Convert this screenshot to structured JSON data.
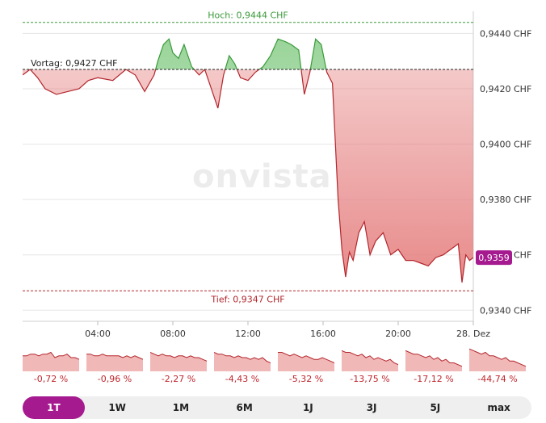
{
  "watermark": "onvista",
  "chart_data": {
    "type": "area",
    "y_ticks": [
      "0,9440 CHF",
      "0,9420 CHF",
      "0,9400 CHF",
      "0,9380 CHF",
      "0,9360 CHF",
      "0,9340 CHF"
    ],
    "y_tick_values": [
      0.944,
      0.942,
      0.94,
      0.938,
      0.936,
      0.934
    ],
    "ylim": [
      0.9336,
      0.9448
    ],
    "x_ticks": [
      "04:00",
      "08:00",
      "12:00",
      "16:00",
      "20:00",
      "28. Dez"
    ],
    "x_tick_hours": [
      4,
      8,
      12,
      16,
      20,
      24
    ],
    "xlim": [
      0,
      24
    ],
    "high": {
      "label": "Hoch: 0,9444 CHF",
      "value": 0.9444
    },
    "previous_close": {
      "label": "Vortag: 0,9427 CHF",
      "value": 0.9427
    },
    "low": {
      "label": "Tief: 0,9347 CHF",
      "value": 0.9347
    },
    "last": {
      "label": "0,9359",
      "value": 0.9359
    },
    "x": [
      0.0,
      0.4,
      0.8,
      1.2,
      1.8,
      2.4,
      3.0,
      3.5,
      4.0,
      4.8,
      5.5,
      6.0,
      6.5,
      7.0,
      7.2,
      7.5,
      7.8,
      8.0,
      8.3,
      8.6,
      9.0,
      9.4,
      9.7,
      10.0,
      10.4,
      10.7,
      11.0,
      11.3,
      11.6,
      12.0,
      12.4,
      12.8,
      13.2,
      13.6,
      14.0,
      14.3,
      14.7,
      15.0,
      15.3,
      15.6,
      15.9,
      16.2,
      16.5,
      16.8,
      17.0,
      17.2,
      17.4,
      17.6,
      17.9,
      18.2,
      18.5,
      18.8,
      19.2,
      19.6,
      20.0,
      20.4,
      20.8,
      21.2,
      21.6,
      22.0,
      22.4,
      22.8,
      23.2,
      23.4,
      23.6,
      23.8,
      24.0
    ],
    "values": [
      0.9425,
      0.9427,
      0.9424,
      0.942,
      0.9418,
      0.9419,
      0.942,
      0.9423,
      0.9424,
      0.9423,
      0.9427,
      0.9425,
      0.9419,
      0.9425,
      0.943,
      0.9436,
      0.9438,
      0.9433,
      0.9431,
      0.9436,
      0.9428,
      0.9425,
      0.9427,
      0.9421,
      0.9413,
      0.9425,
      0.9432,
      0.9429,
      0.9424,
      0.9423,
      0.9426,
      0.9428,
      0.9432,
      0.9438,
      0.9437,
      0.9436,
      0.9434,
      0.9418,
      0.9426,
      0.9438,
      0.9436,
      0.9426,
      0.9422,
      0.938,
      0.9362,
      0.9352,
      0.9361,
      0.9358,
      0.9368,
      0.9372,
      0.936,
      0.9365,
      0.9368,
      0.936,
      0.9362,
      0.9358,
      0.9358,
      0.9357,
      0.9356,
      0.9359,
      0.936,
      0.9362,
      0.9364,
      0.935,
      0.936,
      0.9358,
      0.9359
    ]
  },
  "performance": [
    {
      "label": "-0,72 %",
      "values": [
        5,
        5,
        4,
        4,
        5,
        4,
        4,
        3,
        6,
        5,
        5,
        4,
        6,
        6,
        7
      ]
    },
    {
      "label": "-0,96 %",
      "values": [
        4,
        4,
        5,
        5,
        4,
        5,
        5,
        5,
        5,
        6,
        5,
        6,
        5,
        6,
        7
      ]
    },
    {
      "label": "-2,27 %",
      "values": [
        3,
        4,
        5,
        4,
        5,
        5,
        6,
        5,
        5,
        6,
        5,
        6,
        6,
        7,
        8
      ]
    },
    {
      "label": "-4,43 %",
      "values": [
        3,
        4,
        4,
        5,
        5,
        6,
        5,
        6,
        6,
        7,
        6,
        7,
        6,
        8,
        9
      ]
    },
    {
      "label": "-5,32 %",
      "values": [
        3,
        3,
        4,
        5,
        4,
        5,
        6,
        5,
        6,
        7,
        7,
        6,
        7,
        8,
        9
      ]
    },
    {
      "label": "-13,75 %",
      "values": [
        2,
        3,
        3,
        4,
        5,
        4,
        6,
        5,
        7,
        6,
        7,
        8,
        7,
        9,
        10
      ]
    },
    {
      "label": "-17,12 %",
      "values": [
        2,
        3,
        4,
        4,
        5,
        6,
        5,
        7,
        6,
        8,
        7,
        9,
        9,
        10,
        11
      ]
    },
    {
      "label": "-44,74 %",
      "values": [
        1,
        2,
        3,
        4,
        3,
        5,
        5,
        6,
        7,
        6,
        8,
        8,
        9,
        10,
        11
      ]
    }
  ],
  "tabs": [
    {
      "label": "1T",
      "active": true
    },
    {
      "label": "1W",
      "active": false
    },
    {
      "label": "1M",
      "active": false
    },
    {
      "label": "6M",
      "active": false
    },
    {
      "label": "1J",
      "active": false
    },
    {
      "label": "3J",
      "active": false
    },
    {
      "label": "5J",
      "active": false
    },
    {
      "label": "max",
      "active": false
    }
  ],
  "colors": {
    "up_line": "#3a9a3a",
    "up_fill": "#8fd08f",
    "down_line": "#b3262c",
    "down_fill": "#e57d7d",
    "accent": "#a51a8f",
    "grid": "#e6e6e6"
  }
}
